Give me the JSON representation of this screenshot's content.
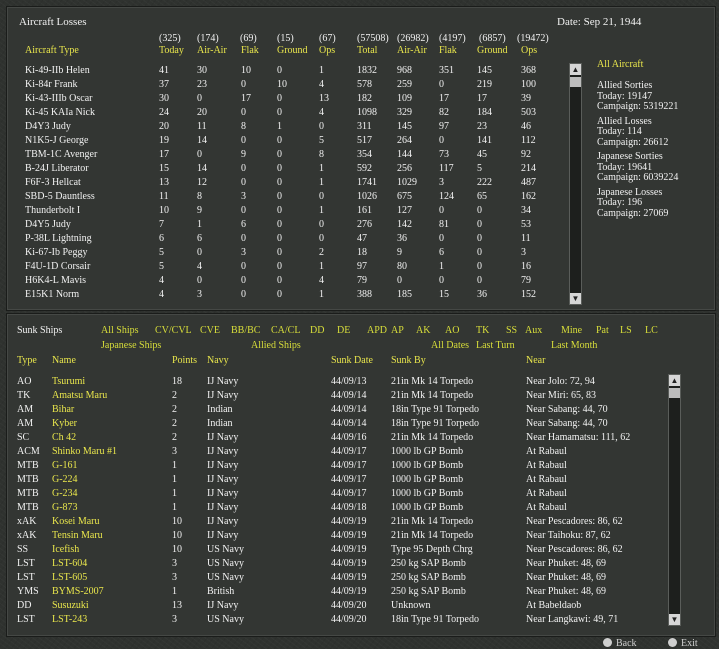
{
  "top_panel": {
    "title": "Aircraft Losses",
    "date": "Date: Sep 21, 1944",
    "totals": [
      "(325)",
      "(174)",
      "(69)",
      "(15)",
      "(67)",
      "(57508)",
      "(26982)",
      "(4197)",
      "(6857)",
      "(19472)"
    ],
    "columns": [
      "Aircraft Type",
      "Today",
      "Air-Air",
      "Flak",
      "Ground",
      "Ops",
      "Total",
      "Air-Air",
      "Flak",
      "Ground",
      "Ops"
    ],
    "rows": [
      [
        "Ki-49-IIb Helen",
        "41",
        "30",
        "10",
        "0",
        "1",
        "1832",
        "968",
        "351",
        "145",
        "368"
      ],
      [
        "Ki-84r Frank",
        "37",
        "23",
        "0",
        "10",
        "4",
        "578",
        "259",
        "0",
        "219",
        "100"
      ],
      [
        "Ki-43-IIIb Oscar",
        "30",
        "0",
        "17",
        "0",
        "13",
        "182",
        "109",
        "17",
        "17",
        "39"
      ],
      [
        "Ki-45 KAIa Nick",
        "24",
        "20",
        "0",
        "0",
        "4",
        "1098",
        "329",
        "82",
        "184",
        "503"
      ],
      [
        "D4Y3 Judy",
        "20",
        "11",
        "8",
        "1",
        "0",
        "311",
        "145",
        "97",
        "23",
        "46"
      ],
      [
        "N1K5-J George",
        "19",
        "14",
        "0",
        "0",
        "5",
        "517",
        "264",
        "0",
        "141",
        "112"
      ],
      [
        "TBM-1C Avenger",
        "17",
        "0",
        "9",
        "0",
        "8",
        "354",
        "144",
        "73",
        "45",
        "92"
      ],
      [
        "B-24J Liberator",
        "15",
        "14",
        "0",
        "0",
        "1",
        "592",
        "256",
        "117",
        "5",
        "214"
      ],
      [
        "F6F-3 Hellcat",
        "13",
        "12",
        "0",
        "0",
        "1",
        "1741",
        "1029",
        "3",
        "222",
        "487"
      ],
      [
        "SBD-5 Dauntless",
        "11",
        "8",
        "3",
        "0",
        "0",
        "1026",
        "675",
        "124",
        "65",
        "162"
      ],
      [
        "Thunderbolt I",
        "10",
        "9",
        "0",
        "0",
        "1",
        "161",
        "127",
        "0",
        "0",
        "34"
      ],
      [
        "D4Y5 Judy",
        "7",
        "1",
        "6",
        "0",
        "0",
        "276",
        "142",
        "81",
        "0",
        "53"
      ],
      [
        "P-38L Lightning",
        "6",
        "6",
        "0",
        "0",
        "0",
        "47",
        "36",
        "0",
        "0",
        "11"
      ],
      [
        "Ki-67-Ib Peggy",
        "5",
        "0",
        "3",
        "0",
        "2",
        "18",
        "9",
        "6",
        "0",
        "3"
      ],
      [
        "F4U-1D Corsair",
        "5",
        "4",
        "0",
        "0",
        "1",
        "97",
        "80",
        "1",
        "0",
        "16"
      ],
      [
        "H6K4-L Mavis",
        "4",
        "0",
        "0",
        "0",
        "4",
        "79",
        "0",
        "0",
        "0",
        "79"
      ],
      [
        "E15K1 Norm",
        "4",
        "3",
        "0",
        "0",
        "1",
        "388",
        "185",
        "15",
        "36",
        "152"
      ]
    ],
    "side": {
      "all_aircraft": "All Aircraft",
      "lines": [
        "Allied Sorties",
        "Today:   19147",
        "Campaign: 5319221",
        "",
        "Allied Losses",
        "Today:   114",
        "Campaign: 26612",
        "",
        "Japanese Sorties",
        "Today:   19641",
        "Campaign: 6039224",
        "",
        "Japanese Losses",
        "Today:   196",
        "Campaign: 27069"
      ]
    }
  },
  "bottom_panel": {
    "title": "Sunk Ships",
    "filters_row1": [
      "All Ships",
      "CV/CVL",
      "CVE",
      "BB/BC",
      "CA/CL",
      "DD",
      "DE",
      "APD",
      "AP",
      "AK",
      "AO",
      "TK",
      "SS",
      "Aux",
      "Mine",
      "Pat",
      "LS",
      "LC"
    ],
    "filters_row2": [
      "Japanese Ships",
      "Allied Ships",
      "All Dates",
      "Last Turn",
      "Last Month"
    ],
    "columns": [
      "Type",
      "Name",
      "Points",
      "Navy",
      "Sunk Date",
      "Sunk By",
      "Near"
    ],
    "rows": [
      [
        "AO",
        "Tsurumi",
        "18",
        "IJ Navy",
        "44/09/13",
        "21in Mk 14 Torpedo",
        "Near Jolo: 72, 94"
      ],
      [
        "TK",
        "Amatsu Maru",
        "2",
        "IJ Navy",
        "44/09/14",
        "21in Mk 14 Torpedo",
        "Near Miri: 65, 83"
      ],
      [
        "AM",
        "Bihar",
        "2",
        "Indian",
        "44/09/14",
        "18in Type 91 Torpedo",
        "Near Sabang: 44, 70"
      ],
      [
        "AM",
        "Kyber",
        "2",
        "Indian",
        "44/09/14",
        "18in Type 91 Torpedo",
        "Near Sabang: 44, 70"
      ],
      [
        "SC",
        "Ch 42",
        "2",
        "IJ Navy",
        "44/09/16",
        "21in Mk 14 Torpedo",
        "Near Hamamatsu: 111, 62"
      ],
      [
        "ACM",
        "Shinko Maru #1",
        "3",
        "IJ Navy",
        "44/09/17",
        "1000 lb GP Bomb",
        "At Rabaul"
      ],
      [
        "MTB",
        "G-161",
        "1",
        "IJ Navy",
        "44/09/17",
        "1000 lb GP Bomb",
        "At Rabaul"
      ],
      [
        "MTB",
        "G-224",
        "1",
        "IJ Navy",
        "44/09/17",
        "1000 lb GP Bomb",
        "At Rabaul"
      ],
      [
        "MTB",
        "G-234",
        "1",
        "IJ Navy",
        "44/09/17",
        "1000 lb GP Bomb",
        "At Rabaul"
      ],
      [
        "MTB",
        "G-873",
        "1",
        "IJ Navy",
        "44/09/18",
        "1000 lb GP Bomb",
        "At Rabaul"
      ],
      [
        "xAK",
        "Kosei Maru",
        "10",
        "IJ Navy",
        "44/09/19",
        "21in Mk 14 Torpedo",
        "Near Pescadores: 86, 62"
      ],
      [
        "xAK",
        "Tensin Maru",
        "10",
        "IJ Navy",
        "44/09/19",
        "21in Mk 14 Torpedo",
        "Near Taihoku: 87, 62"
      ],
      [
        "SS",
        "Icefish",
        "10",
        "US Navy",
        "44/09/19",
        "Type 95 Depth Chrg",
        "Near Pescadores: 86, 62"
      ],
      [
        "LST",
        "LST-604",
        "3",
        "US Navy",
        "44/09/19",
        "250 kg SAP Bomb",
        "Near Phuket: 48, 69"
      ],
      [
        "LST",
        "LST-605",
        "3",
        "US Navy",
        "44/09/19",
        "250 kg SAP Bomb",
        "Near Phuket: 48, 69"
      ],
      [
        "YMS",
        "BYMS-2007",
        "1",
        "British",
        "44/09/19",
        "250 kg SAP Bomb",
        "Near Phuket: 48, 69"
      ],
      [
        "DD",
        "Susuzuki",
        "13",
        "IJ Navy",
        "44/09/20",
        "Unknown",
        "At Babeldaob"
      ],
      [
        "LST",
        "LST-243",
        "3",
        "US Navy",
        "44/09/20",
        "18in Type 91 Torpedo",
        "Near Langkawi: 49, 71"
      ]
    ]
  },
  "footer": {
    "back": "Back",
    "exit": "Exit"
  },
  "colors": {
    "accent_yellow": "#e9e64c",
    "accent_green": "#d8de3a",
    "text": "#f2f2f2",
    "panel": "#333633"
  }
}
